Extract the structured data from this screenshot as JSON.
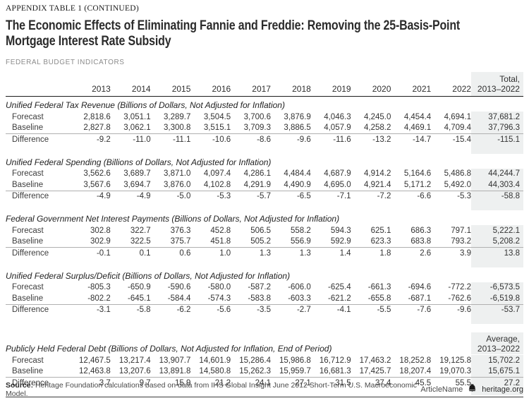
{
  "page": {
    "eyebrow": "APPENDIX TABLE 1 (CONTINUED)",
    "title_line1": "The Economic Effects of Eliminating Fannie and Freddie: Removing the 25-Basis-Point",
    "title_line2": "Mortgage Interest Rate Subsidy",
    "kicker": "FEDERAL BUDGET INDICATORS"
  },
  "table": {
    "year_columns": [
      "2013",
      "2014",
      "2015",
      "2016",
      "2017",
      "2018",
      "2019",
      "2020",
      "2021",
      "2022"
    ],
    "total_header": {
      "line1": "Total,",
      "line2": "2013–2022"
    },
    "sections": [
      {
        "title": "Unified Federal Tax Revenue (Billions of Dollars, Not Adjusted for Inflation)",
        "rows": [
          {
            "label": "Forecast",
            "values": [
              "2,818.6",
              "3,051.1",
              "3,289.7",
              "3,504.5",
              "3,700.6",
              "3,876.9",
              "4,046.3",
              "4,245.0",
              "4,454.4",
              "4,694.1"
            ],
            "total": "37,681.2"
          },
          {
            "label": "Baseline",
            "values": [
              "2,827.8",
              "3,062.1",
              "3,300.8",
              "3,515.1",
              "3,709.3",
              "3,886.5",
              "4,057.9",
              "4,258.2",
              "4,469.1",
              "4,709.4"
            ],
            "total": "37,796.3"
          },
          {
            "label": "Difference",
            "values": [
              "-9.2",
              "-11.0",
              "-11.1",
              "-10.6",
              "-8.6",
              "-9.6",
              "-11.6",
              "-13.2",
              "-14.7",
              "-15.4"
            ],
            "total": "-115.1"
          }
        ]
      },
      {
        "title": "Unified Federal Spending (Billions of Dollars, Not Adjusted for Inflation)",
        "rows": [
          {
            "label": "Forecast",
            "values": [
              "3,562.6",
              "3,689.7",
              "3,871.0",
              "4,097.4",
              "4,286.1",
              "4,484.4",
              "4,687.9",
              "4,914.2",
              "5,164.6",
              "5,486.8"
            ],
            "total": "44,244.7"
          },
          {
            "label": "Baseline",
            "values": [
              "3,567.6",
              "3,694.7",
              "3,876.0",
              "4,102.8",
              "4,291.9",
              "4,490.9",
              "4,695.0",
              "4,921.4",
              "5,171.2",
              "5,492.0"
            ],
            "total": "44,303.4"
          },
          {
            "label": "Difference",
            "values": [
              "-4.9",
              "-4.9",
              "-5.0",
              "-5.3",
              "-5.7",
              "-6.5",
              "-7.1",
              "-7.2",
              "-6.6",
              "-5.3"
            ],
            "total": "-58.8"
          }
        ]
      },
      {
        "title": "Federal Government Net Interest Payments (Billions of Dollars, Not Adjusted for Inflation)",
        "rows": [
          {
            "label": "Forecast",
            "values": [
              "302.8",
              "322.7",
              "376.3",
              "452.8",
              "506.5",
              "558.2",
              "594.3",
              "625.1",
              "686.3",
              "797.1"
            ],
            "total": "5,222.1"
          },
          {
            "label": "Baseline",
            "values": [
              "302.9",
              "322.5",
              "375.7",
              "451.8",
              "505.2",
              "556.9",
              "592.9",
              "623.3",
              "683.8",
              "793.2"
            ],
            "total": "5,208.2"
          },
          {
            "label": "Difference",
            "values": [
              "-0.1",
              "0.1",
              "0.6",
              "1.0",
              "1.3",
              "1.3",
              "1.4",
              "1.8",
              "2.6",
              "3.9"
            ],
            "total": "13.8"
          }
        ]
      },
      {
        "title": "Unified Federal Surplus/Deficit (Billions of Dollars, Not Adjusted for Inflation)",
        "rows": [
          {
            "label": "Forecast",
            "values": [
              "-805.3",
              "-650.9",
              "-590.6",
              "-580.0",
              "-587.2",
              "-606.0",
              "-625.4",
              "-661.3",
              "-694.6",
              "-772.2"
            ],
            "total": "-6,573.5"
          },
          {
            "label": "Baseline",
            "values": [
              "-802.2",
              "-645.1",
              "-584.4",
              "-574.3",
              "-583.8",
              "-603.3",
              "-621.2",
              "-655.8",
              "-687.1",
              "-762.6"
            ],
            "total": "-6,519.8"
          },
          {
            "label": "Difference",
            "values": [
              "-3.1",
              "-5.8",
              "-6.2",
              "-5.6",
              "-3.5",
              "-2.7",
              "-4.1",
              "-5.5",
              "-7.6",
              "-9.6"
            ],
            "total": "-53.7"
          }
        ]
      },
      {
        "title": "Publicly Held Federal Debt (Billions of Dollars, Not Adjusted for Inflation, End of Period)",
        "avg_header": {
          "line1": "Average,",
          "line2": "2013–2022"
        },
        "rows": [
          {
            "label": "Forecast",
            "values": [
              "12,467.5",
              "13,217.4",
              "13,907.7",
              "14,601.9",
              "15,286.4",
              "15,986.8",
              "16,712.9",
              "17,463.2",
              "18,252.8",
              "19,125.8"
            ],
            "total": "15,702.2"
          },
          {
            "label": "Baseline",
            "values": [
              "12,463.8",
              "13,207.6",
              "13,891.8",
              "14,580.8",
              "15,262.3",
              "15,959.7",
              "16,681.3",
              "17,425.7",
              "18,207.4",
              "19,070.3"
            ],
            "total": "15,675.1"
          },
          {
            "label": "Difference",
            "values": [
              "3.7",
              "9.7",
              "15.9",
              "21.2",
              "24.1",
              "27.1",
              "31.5",
              "37.4",
              "45.5",
              "55.5"
            ],
            "total": "27.2"
          }
        ]
      }
    ]
  },
  "footer": {
    "source_label": "Source:",
    "source_text": " Heritage Foundation calculations based on data from IHS Global Insight June 2012 Short-Term U.S. Macroeconomic Model.",
    "article_name": "ArticleName",
    "logo_icon": "liberty-bell-icon",
    "site": "heritage.org"
  },
  "colors": {
    "shade": "#eef0f0",
    "rule_dark": "#1c1c1c",
    "rule_light": "#b0b0b0",
    "title_text": "#2b2b2b"
  }
}
